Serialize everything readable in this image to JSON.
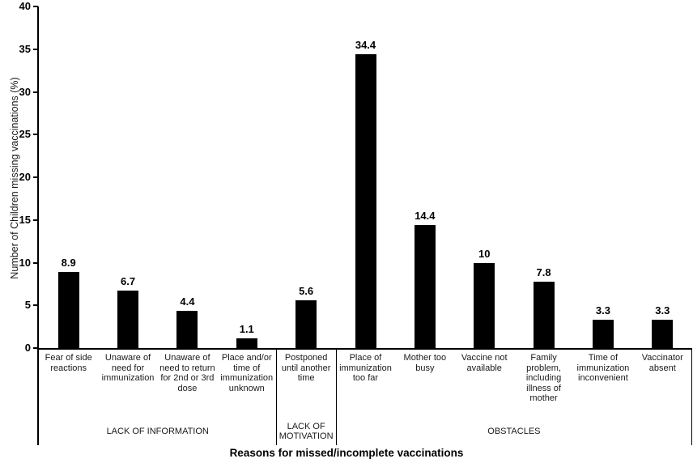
{
  "chart_data": {
    "type": "bar",
    "title": "",
    "xlabel": "Reasons for missed/incomplete vaccinations",
    "ylabel": "Number of Children missing vaccinations (%)",
    "ylim": [
      0,
      40
    ],
    "ytick_step": 5,
    "grid": false,
    "legend": false,
    "bar_color": "#000000",
    "categories": [
      "Fear of side reactions",
      "Unaware of need for immunization",
      "Unaware of need to return for 2nd or 3rd dose",
      "Place and/or time of immunization unknown",
      "Postponed until another time",
      "Place of immunization too far",
      "Mother too busy",
      "Vaccine not available",
      "Family problem, including illness of mother",
      "Time of immunization inconvenient",
      "Vaccinator absent"
    ],
    "values": [
      8.9,
      6.7,
      4.4,
      1.1,
      5.6,
      34.4,
      14.4,
      10,
      7.8,
      3.3,
      3.3
    ],
    "value_labels": [
      "8.9",
      "6.7",
      "4.4",
      "1.1",
      "5.6",
      "34.4",
      "14.4",
      "10",
      "7.8",
      "3.3",
      "3.3"
    ],
    "groups": [
      {
        "label": "LACK OF INFORMATION",
        "span": 4
      },
      {
        "label": "LACK OF MOTIVATION",
        "span": 1
      },
      {
        "label": "OBSTACLES",
        "span": 6
      }
    ]
  }
}
